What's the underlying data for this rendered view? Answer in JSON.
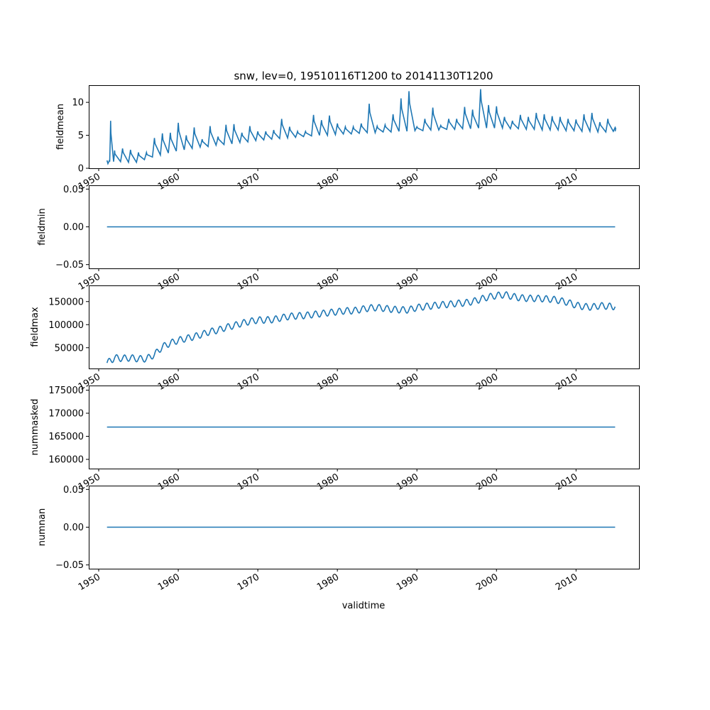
{
  "figure": {
    "title": "snw, lev=0, 19510116T1200 to 20141130T1200",
    "xlabel": "validtime"
  },
  "chart_data": [
    {
      "type": "line",
      "name": "fieldmean",
      "ylabel": "fieldmean",
      "xlim": [
        "1948-10-01",
        "2017-12-01"
      ],
      "ylim": [
        0,
        12.6
      ],
      "yticks": [
        0,
        5,
        10
      ],
      "ytick_labels": [
        "0",
        "5",
        "10"
      ],
      "xtick_labels": [
        "1950",
        "1960",
        "1970",
        "1980",
        "1990",
        "2000",
        "2010"
      ],
      "color": "#1f77b4",
      "x": [
        "1951-01-16",
        "1951-07-01",
        "1952-01-01",
        "1953-01-01",
        "1954-01-01",
        "1955-01-01",
        "1956-01-01",
        "1957-01-01",
        "1958-01-01",
        "1959-01-01",
        "1960-01-01",
        "1961-01-01",
        "1962-01-01",
        "1963-01-01",
        "1964-01-01",
        "1965-01-01",
        "1966-01-01",
        "1967-01-01",
        "1968-01-01",
        "1969-01-01",
        "1970-01-01",
        "1971-01-01",
        "1972-01-01",
        "1973-01-01",
        "1974-01-01",
        "1975-01-01",
        "1976-01-01",
        "1977-01-01",
        "1978-01-01",
        "1979-01-01",
        "1980-01-01",
        "1981-01-01",
        "1982-01-01",
        "1983-01-01",
        "1984-01-01",
        "1985-01-01",
        "1986-01-01",
        "1987-01-01",
        "1988-01-01",
        "1989-01-01",
        "1990-01-01",
        "1991-01-01",
        "1992-01-01",
        "1993-01-01",
        "1994-01-01",
        "1995-01-01",
        "1996-01-01",
        "1997-01-01",
        "1998-01-01",
        "1999-01-01",
        "2000-01-01",
        "2001-01-01",
        "2002-01-01",
        "2003-01-01",
        "2004-01-01",
        "2005-01-01",
        "2006-01-01",
        "2007-01-01",
        "2008-01-01",
        "2009-01-01",
        "2010-01-01",
        "2011-01-01",
        "2012-01-01",
        "2013-01-01",
        "2014-01-01",
        "2014-11-30"
      ],
      "peaks": [
        1.3,
        7.2,
        2.7,
        3.0,
        2.8,
        2.4,
        2.4,
        4.6,
        5.3,
        5.4,
        6.9,
        5.0,
        6.2,
        4.4,
        6.4,
        4.8,
        6.6,
        6.7,
        5.4,
        6.4,
        5.6,
        5.6,
        5.8,
        7.5,
        6.3,
        5.6,
        5.6,
        8.1,
        7.3,
        8.0,
        6.8,
        6.3,
        6.3,
        6.8,
        9.8,
        6.4,
        6.6,
        8.2,
        10.6,
        11.7,
        6.3,
        7.5,
        9.2,
        6.5,
        7.5,
        7.5,
        9.3,
        8.9,
        12.0,
        9.6,
        9.4,
        7.8,
        7.2,
        8.1,
        7.8,
        8.4,
        8.2,
        7.9,
        7.8,
        7.5,
        7.4,
        8.2,
        8.4,
        7.0,
        7.5,
        6.2
      ],
      "troughs": [
        0.7,
        1.0,
        1.0,
        1.0,
        0.9,
        0.9,
        1.3,
        1.7,
        2.0,
        2.3,
        2.6,
        2.8,
        3.0,
        3.2,
        3.3,
        3.5,
        3.6,
        3.7,
        3.9,
        4.0,
        4.2,
        4.3,
        4.4,
        4.5,
        4.6,
        4.7,
        4.8,
        4.9,
        5.0,
        5.0,
        5.1,
        5.2,
        5.2,
        5.3,
        5.4,
        5.4,
        5.5,
        5.5,
        5.6,
        5.6,
        5.7,
        5.7,
        5.8,
        5.8,
        5.9,
        5.9,
        6.0,
        6.0,
        6.1,
        6.1,
        6.1,
        6.1,
        6.0,
        6.0,
        5.9,
        5.9,
        5.8,
        5.8,
        5.8,
        5.7,
        5.7,
        5.6,
        5.6,
        5.5,
        5.5,
        5.6
      ]
    },
    {
      "type": "line",
      "name": "fieldmin",
      "ylabel": "fieldmin",
      "xlim": [
        "1948-10-01",
        "2017-12-01"
      ],
      "ylim": [
        -0.055,
        0.055
      ],
      "yticks": [
        -0.05,
        0,
        0.05
      ],
      "ytick_labels": [
        "−0.05",
        "0.00",
        "0.05"
      ],
      "xtick_labels": [
        "1950",
        "1960",
        "1970",
        "1980",
        "1990",
        "2000",
        "2010"
      ],
      "color": "#1f77b4",
      "x": [
        "1951-01-16",
        "2014-11-30"
      ],
      "y": [
        0,
        0
      ]
    },
    {
      "type": "line",
      "name": "fieldmax",
      "ylabel": "fieldmax",
      "xlim": [
        "1948-10-01",
        "2017-12-01"
      ],
      "ylim": [
        5000,
        185000
      ],
      "yticks": [
        50000,
        100000,
        150000
      ],
      "ytick_labels": [
        "50000",
        "100000",
        "150000"
      ],
      "xtick_labels": [
        "1950",
        "1960",
        "1970",
        "1980",
        "1990",
        "2000",
        "2010"
      ],
      "color": "#1f77b4",
      "x": [
        "1951-01-16",
        "1952-01-01",
        "1953-01-01",
        "1954-01-01",
        "1955-01-01",
        "1956-01-01",
        "1957-01-01",
        "1958-01-01",
        "1959-01-01",
        "1960-01-01",
        "1961-01-01",
        "1962-01-01",
        "1963-01-01",
        "1964-01-01",
        "1965-01-01",
        "1966-01-01",
        "1967-01-01",
        "1968-01-01",
        "1969-01-01",
        "1970-01-01",
        "1971-01-01",
        "1972-01-01",
        "1973-01-01",
        "1974-01-01",
        "1975-01-01",
        "1976-01-01",
        "1977-01-01",
        "1978-01-01",
        "1979-01-01",
        "1980-01-01",
        "1981-01-01",
        "1982-01-01",
        "1983-01-01",
        "1984-01-01",
        "1985-01-01",
        "1986-01-01",
        "1987-01-01",
        "1988-01-01",
        "1989-01-01",
        "1990-01-01",
        "1991-01-01",
        "1992-01-01",
        "1993-01-01",
        "1994-01-01",
        "1995-01-01",
        "1996-01-01",
        "1997-01-01",
        "1998-01-01",
        "1999-01-01",
        "2000-01-01",
        "2001-01-01",
        "2002-01-01",
        "2003-01-01",
        "2004-01-01",
        "2005-01-01",
        "2006-01-01",
        "2007-01-01",
        "2008-01-01",
        "2009-01-01",
        "2010-01-01",
        "2011-01-01",
        "2012-01-01",
        "2013-01-01",
        "2014-01-01",
        "2014-11-30"
      ],
      "mean": [
        17000,
        28000,
        27000,
        28000,
        26000,
        26000,
        35000,
        52000,
        60000,
        66000,
        70000,
        74000,
        79000,
        85000,
        88000,
        94000,
        98000,
        103000,
        107000,
        110000,
        110000,
        111000,
        115000,
        118000,
        119000,
        120000,
        122000,
        124000,
        126000,
        128000,
        130000,
        130000,
        133000,
        136000,
        137000,
        135000,
        133000,
        132000,
        132000,
        137000,
        139000,
        141000,
        143000,
        144000,
        146000,
        147000,
        150000,
        155000,
        160000,
        163000,
        165000,
        161000,
        158000,
        157000,
        157000,
        156000,
        155000,
        152000,
        148000,
        142000,
        139000,
        138000,
        141000,
        140000,
        139000
      ],
      "amplitude": 7000
    },
    {
      "type": "line",
      "name": "nummasked",
      "ylabel": "nummasked",
      "xlim": [
        "1948-10-01",
        "2017-12-01"
      ],
      "ylim": [
        158000,
        176000
      ],
      "yticks": [
        160000,
        165000,
        170000,
        175000
      ],
      "ytick_labels": [
        "160000",
        "165000",
        "170000",
        "175000"
      ],
      "xtick_labels": [
        "1950",
        "1960",
        "1970",
        "1980",
        "1990",
        "2000",
        "2010"
      ],
      "color": "#1f77b4",
      "x": [
        "1951-01-16",
        "2014-11-30"
      ],
      "y": [
        167000,
        167000
      ]
    },
    {
      "type": "line",
      "name": "numnan",
      "ylabel": "numnan",
      "xlim": [
        "1948-10-01",
        "2017-12-01"
      ],
      "ylim": [
        -0.055,
        0.055
      ],
      "yticks": [
        -0.05,
        0,
        0.05
      ],
      "ytick_labels": [
        "−0.05",
        "0.00",
        "0.05"
      ],
      "xtick_labels": [
        "1950",
        "1960",
        "1970",
        "1980",
        "1990",
        "2000",
        "2010"
      ],
      "color": "#1f77b4",
      "x": [
        "1951-01-16",
        "2014-11-30"
      ],
      "y": [
        0,
        0
      ]
    }
  ]
}
